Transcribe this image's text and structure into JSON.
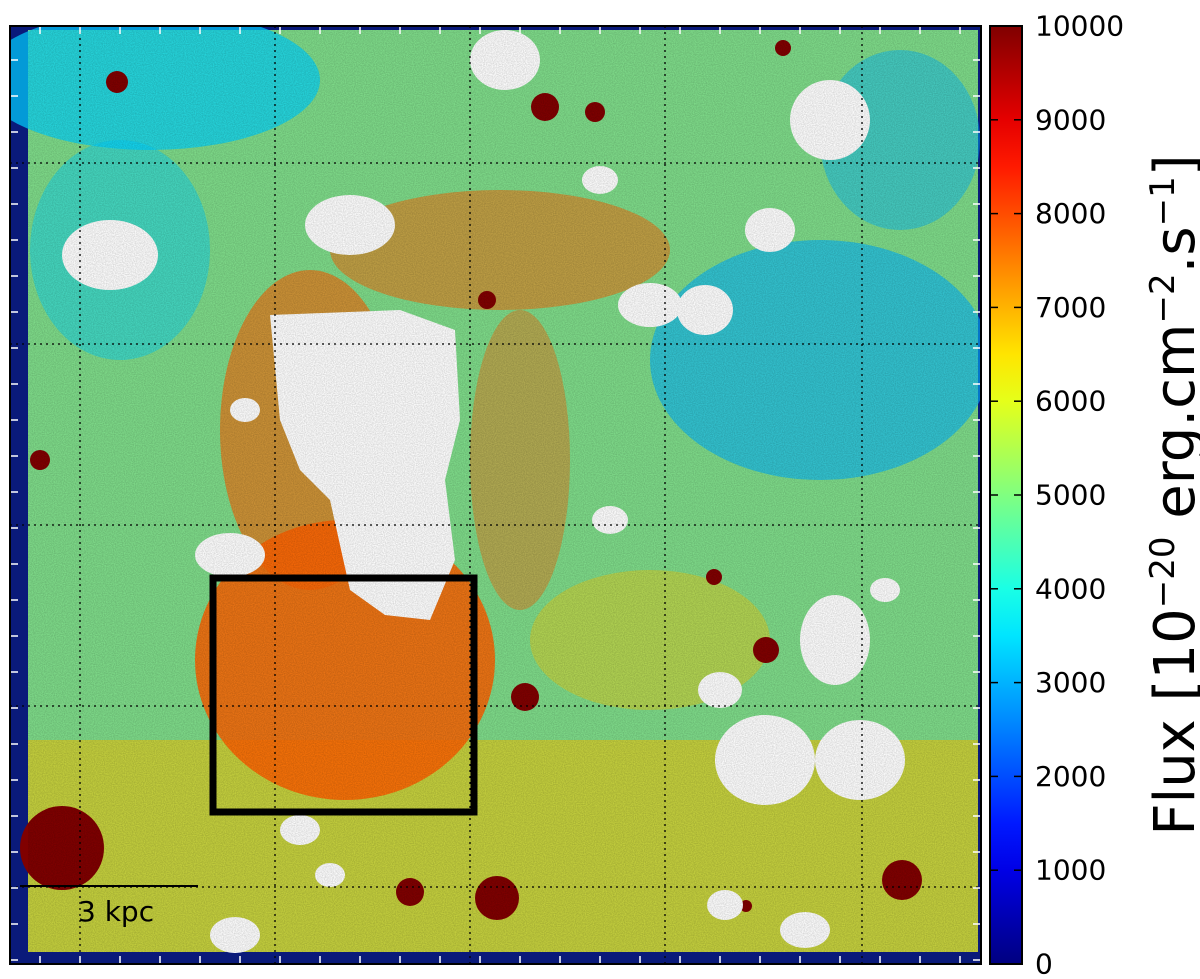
{
  "chart_data": {
    "type": "heatmap",
    "title": "",
    "xlabel": "",
    "ylabel": "",
    "colormap": "jet",
    "nan_color": "#ffffff",
    "colorbar": {
      "label_parts": [
        "Flux [10",
        "−20",
        " erg.cm",
        "−2",
        ".s",
        "−1",
        "]"
      ],
      "min": 0,
      "max": 10000,
      "ticks": [
        0,
        1000,
        2000,
        3000,
        4000,
        5000,
        6000,
        7000,
        8000,
        9000,
        10000
      ],
      "tick_labels": [
        "0",
        "1000",
        "2000",
        "3000",
        "4000",
        "5000",
        "6000",
        "7000",
        "8000",
        "9000",
        "10000"
      ]
    },
    "grid": true,
    "scale_bar_label": "3 kpc",
    "map_background_flux": 5000,
    "regions": [
      {
        "name": "blue-upper-left",
        "flux": 3300
      },
      {
        "name": "blue-right",
        "flux": 3000
      },
      {
        "name": "orange-box-region",
        "flux": 7800
      },
      {
        "name": "lower-band",
        "flux": 6800
      }
    ],
    "saturated_sources_flux": 10000,
    "highlight_box": {
      "shown": true,
      "color": "#000000"
    }
  }
}
